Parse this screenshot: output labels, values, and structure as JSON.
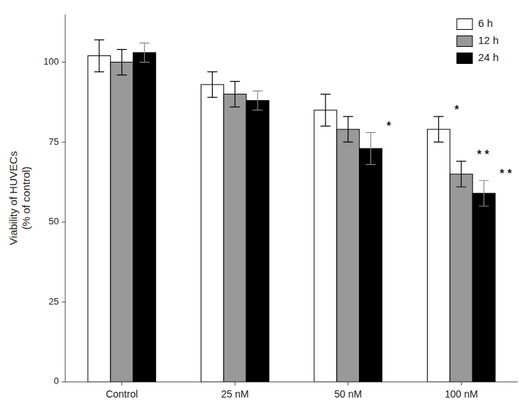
{
  "chart_data": {
    "type": "bar",
    "y_label": "Viability of HUVECs\n(% of control)",
    "categories": [
      "Control",
      "25 nM",
      "50 nM",
      "100 nM"
    ],
    "series": [
      {
        "name": "6 h",
        "color": "#ffffff",
        "values": [
          102,
          93,
          85,
          79
        ],
        "errors": [
          5,
          4,
          5,
          4
        ]
      },
      {
        "name": "12 h",
        "color": "#999999",
        "values": [
          100,
          90,
          79,
          65
        ],
        "errors": [
          4,
          4,
          4,
          4
        ]
      },
      {
        "name": "24 h",
        "color": "#000000",
        "values": [
          103,
          88,
          73,
          59
        ],
        "errors": [
          3,
          3,
          5,
          4
        ]
      }
    ],
    "ylim": [
      0,
      115
    ],
    "yticks": [
      0,
      25,
      50,
      75,
      100
    ],
    "grid": false,
    "legend": "upper right",
    "annotations": [
      {
        "text": "*",
        "category": "50 nM",
        "series": "24 h"
      },
      {
        "text": "*",
        "category": "100 nM",
        "series": "6 h"
      },
      {
        "text": "* *",
        "category": "100 nM",
        "series": "12 h"
      },
      {
        "text": "* *",
        "category": "100 nM",
        "series": "24 h"
      }
    ]
  }
}
